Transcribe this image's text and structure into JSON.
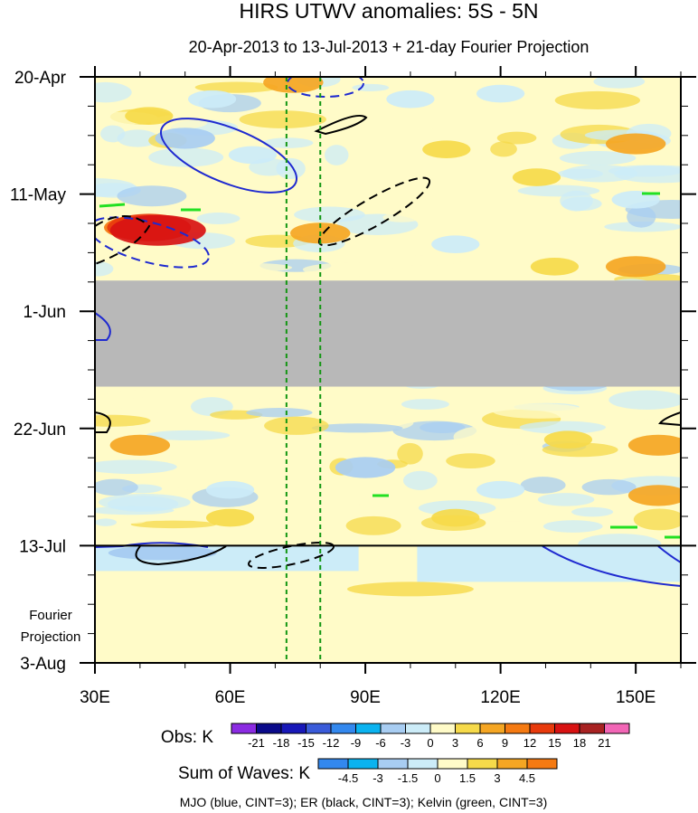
{
  "chart_data": {
    "type": "heatmap",
    "title": "HIRS UTWV anomalies: 5S - 5N",
    "subtitle": "20-Apr-2013 to 13-Jul-2013 + 21-day Fourier Projection",
    "x_axis": {
      "range_deg": [
        30,
        160
      ],
      "ticks": [
        {
          "value": 30,
          "label": "30E"
        },
        {
          "value": 60,
          "label": "60E"
        },
        {
          "value": 90,
          "label": "90E"
        },
        {
          "value": 120,
          "label": "120E"
        },
        {
          "value": 150,
          "label": "150E"
        }
      ]
    },
    "y_axis": {
      "range_days": [
        0,
        105
      ],
      "direction": "time increasing downward",
      "ticks": [
        {
          "day": 0,
          "label": "20-Apr"
        },
        {
          "day": 21,
          "label": "11-May"
        },
        {
          "day": 42,
          "label": "1-Jun"
        },
        {
          "day": 63,
          "label": "22-Jun"
        },
        {
          "day": 84,
          "label": "13-Jul"
        },
        {
          "day": 105,
          "label": "3-Aug"
        }
      ],
      "projection_label_line1": "Fourier",
      "projection_label_line2": "Projection"
    },
    "projection_start_day": 84,
    "missing_data_days": [
      36.5,
      55.5
    ],
    "reference_longitudes": [
      72.5,
      80
    ],
    "obs_legend": {
      "label": "Obs: K",
      "levels": [
        "-21",
        "-18",
        "-15",
        "-12",
        "-9",
        "-6",
        "-3",
        "0",
        "3",
        "6",
        "9",
        "12",
        "15",
        "18",
        "21"
      ],
      "colors": [
        "#8b2be2",
        "#0a0a8a",
        "#1818b8",
        "#3a5bd9",
        "#3388ee",
        "#0bb3f0",
        "#a8cdf2",
        "#ccecf8",
        "#fffbc8",
        "#f6da4a",
        "#f5a623",
        "#f57a12",
        "#e83a0c",
        "#d81212",
        "#a82222",
        "#f266b6"
      ]
    },
    "waves_legend": {
      "label": "Sum of Waves: K",
      "levels": [
        "-4.5",
        "-3",
        "-1.5",
        "0",
        "1.5",
        "3",
        "4.5"
      ],
      "colors": [
        "#3388ee",
        "#0bb3f0",
        "#a8cdf2",
        "#ccecf8",
        "#fffbc8",
        "#f6da4a",
        "#f5a623",
        "#f57a12"
      ]
    },
    "contour_note": "MJO (blue, CINT=3); ER (black, CINT=3); Kelvin (green, CINT=3)",
    "anomaly_patches": [
      {
        "lon": 42,
        "day": 7,
        "value": 3
      },
      {
        "lon": 74,
        "day": 1,
        "value": 6
      },
      {
        "lon": 56,
        "day": 4,
        "value": -3
      },
      {
        "lon": 100,
        "day": 4,
        "value": -3
      },
      {
        "lon": 120,
        "day": 3,
        "value": -3
      },
      {
        "lon": 50,
        "day": 11,
        "value": -6
      },
      {
        "lon": 65,
        "day": 14,
        "value": -3
      },
      {
        "lon": 108,
        "day": 13,
        "value": 3
      },
      {
        "lon": 150,
        "day": 12,
        "value": 6
      },
      {
        "lon": 128,
        "day": 18,
        "value": 3
      },
      {
        "lon": 150,
        "day": 22,
        "value": -3
      },
      {
        "lon": 40,
        "day": 27,
        "value": 9
      },
      {
        "lon": 42,
        "day": 27,
        "value": 12
      },
      {
        "lon": 44,
        "day": 27.5,
        "value": 15
      },
      {
        "lon": 80,
        "day": 28,
        "value": 6
      },
      {
        "lon": 110,
        "day": 30,
        "value": -3
      },
      {
        "lon": 150,
        "day": 34,
        "value": 6
      },
      {
        "lon": 132,
        "day": 34,
        "value": 3
      },
      {
        "lon": 40,
        "day": 66,
        "value": 6
      },
      {
        "lon": 135,
        "day": 65,
        "value": 3
      },
      {
        "lon": 155,
        "day": 66,
        "value": 6
      },
      {
        "lon": 90,
        "day": 70,
        "value": -6
      },
      {
        "lon": 60,
        "day": 74,
        "value": -3
      },
      {
        "lon": 120,
        "day": 74,
        "value": -3
      },
      {
        "lon": 155,
        "day": 75,
        "value": 6
      },
      {
        "lon": 60,
        "day": 79,
        "value": 3
      },
      {
        "lon": 110,
        "day": 79,
        "value": 3
      },
      {
        "lon": 45,
        "day": 86,
        "value": -3
      },
      {
        "lon": 120,
        "day": 87,
        "value": -3
      },
      {
        "lon": 100,
        "day": 88,
        "value": 3
      }
    ]
  }
}
